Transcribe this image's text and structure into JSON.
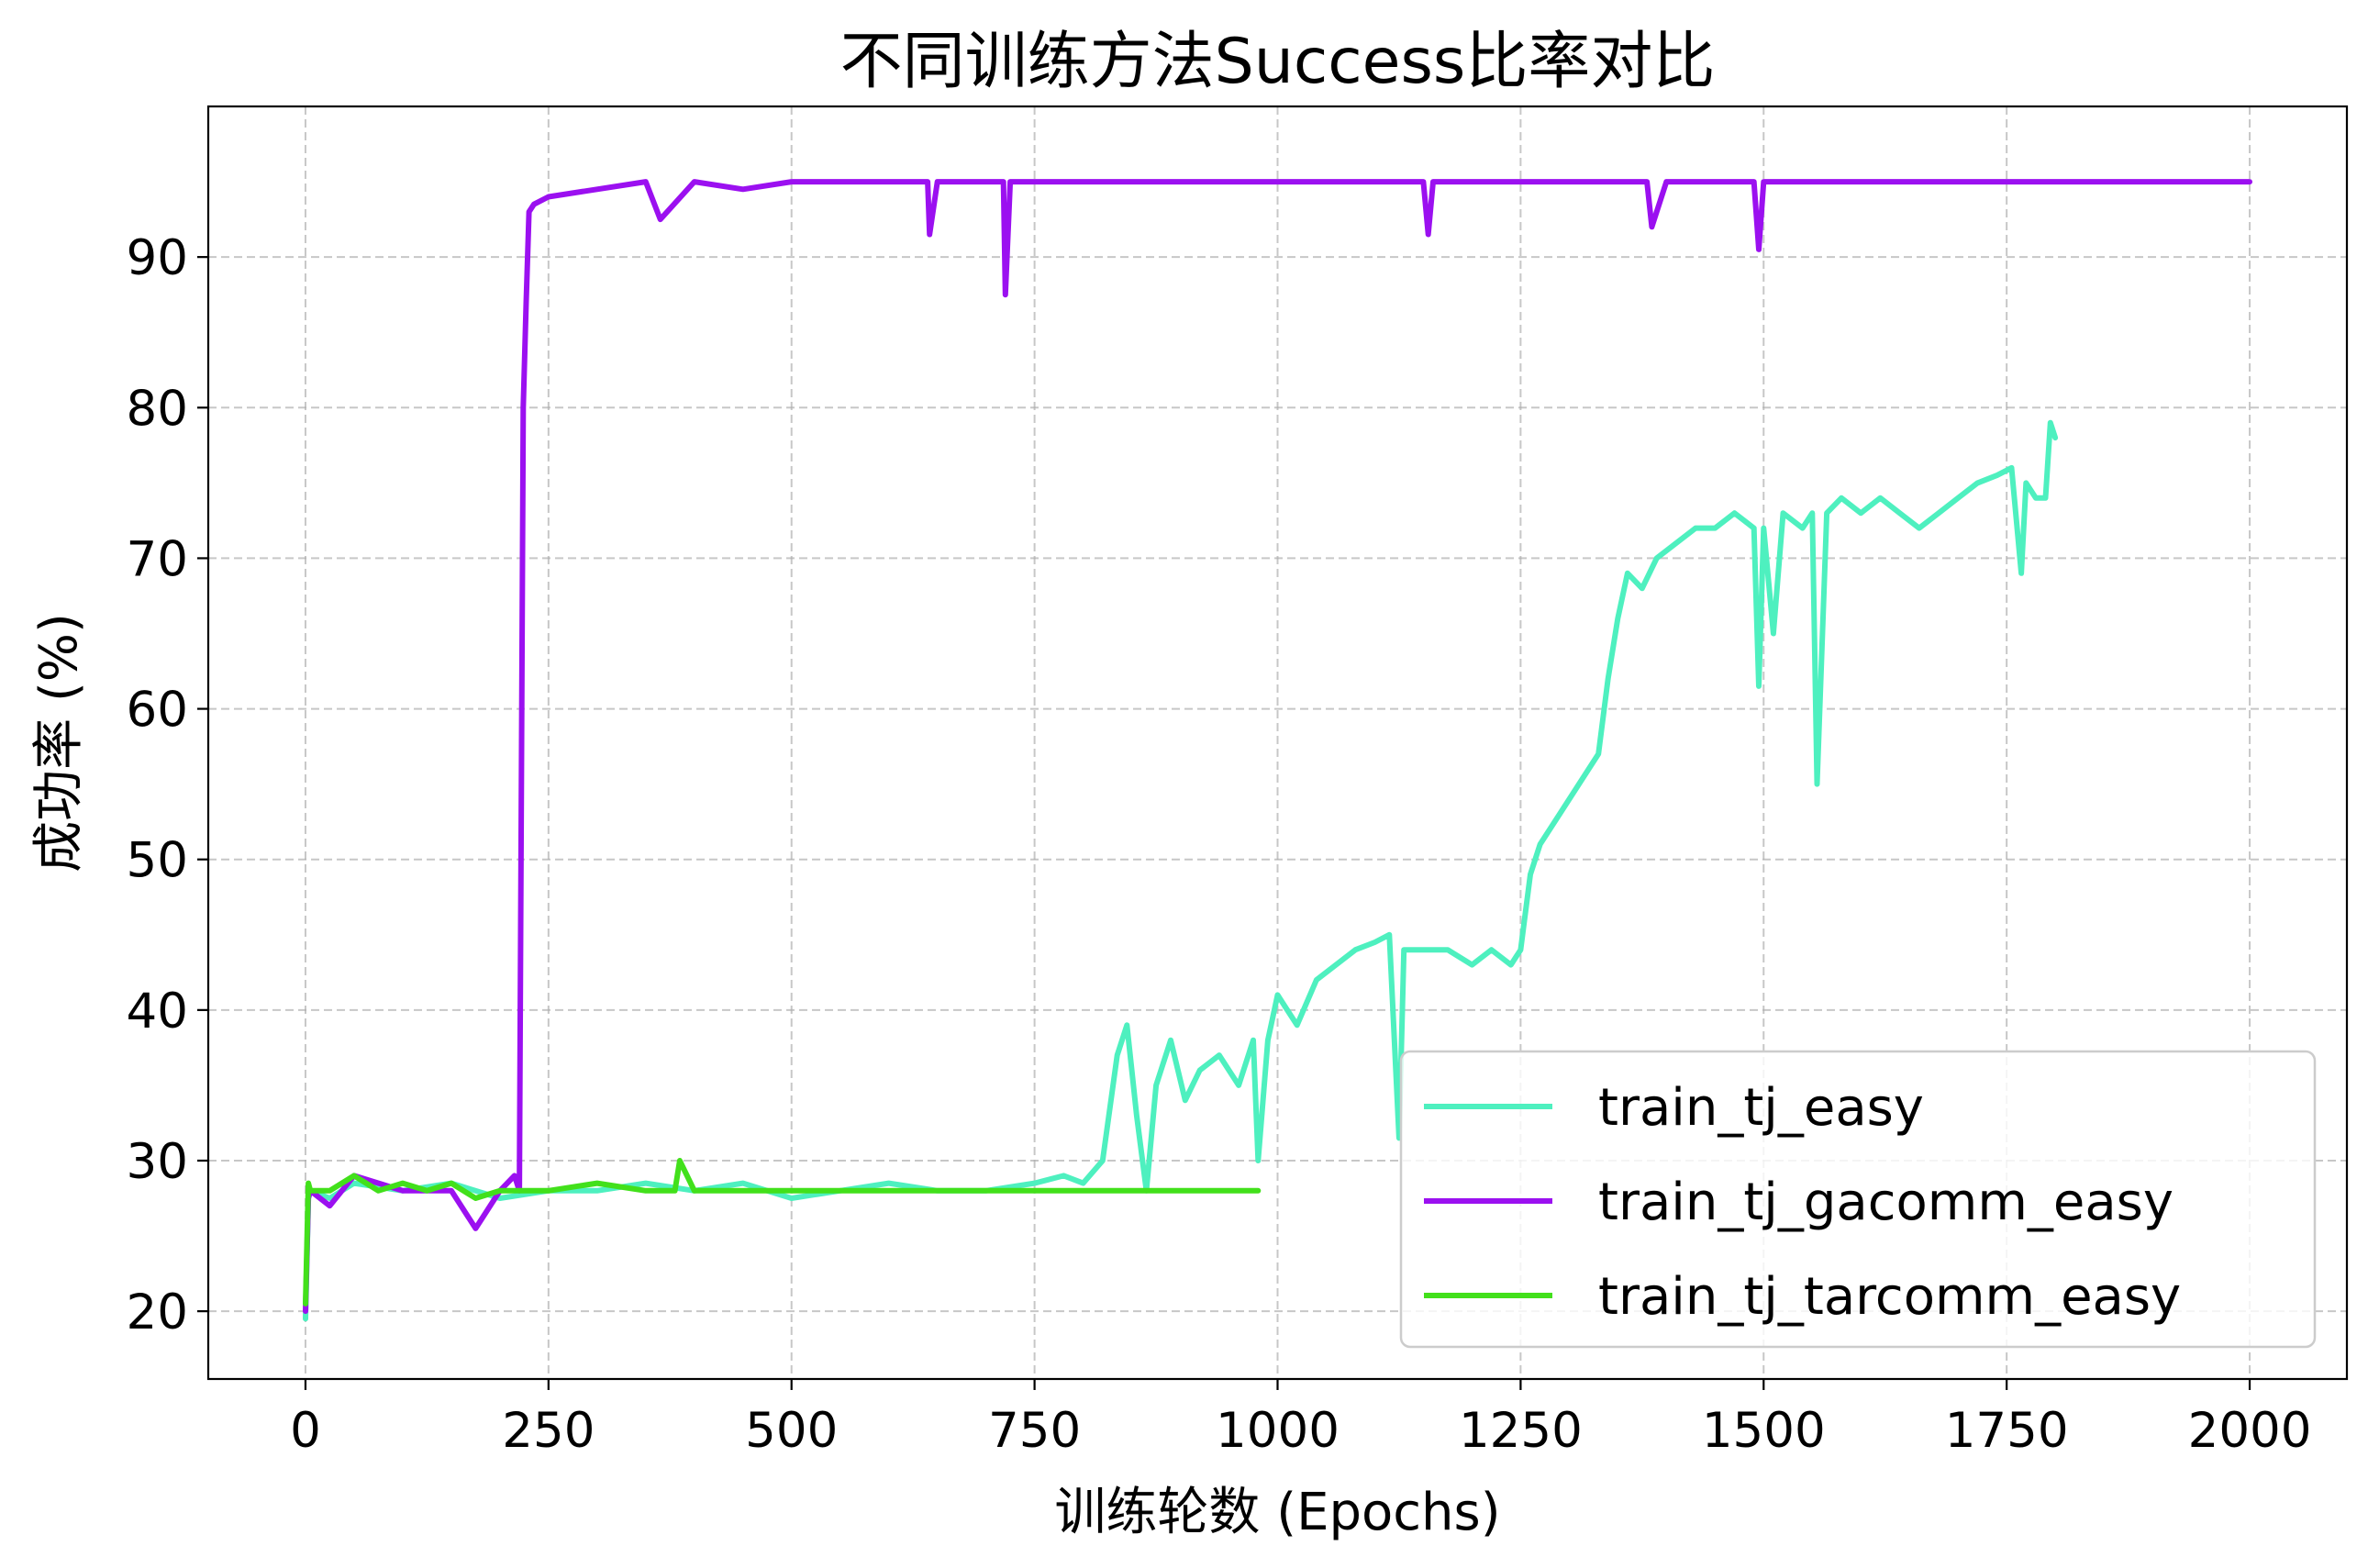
{
  "chart_data": {
    "type": "line",
    "title": "不同训练方法Success比率对比",
    "xlabel": "训练轮数 (Epochs)",
    "ylabel": "成功率 (%)",
    "xlim": [
      -100,
      2100
    ],
    "ylim": [
      15.5,
      100
    ],
    "x_ticks": [
      0,
      250,
      500,
      750,
      1000,
      1250,
      1500,
      1750,
      2000
    ],
    "x_tick_labels": [
      "0",
      "250",
      "500",
      "750",
      "1000",
      "1250",
      "1500",
      "1750",
      "2000"
    ],
    "y_ticks": [
      20,
      30,
      40,
      50,
      60,
      70,
      80,
      90
    ],
    "y_tick_labels": [
      "20",
      "30",
      "40",
      "50",
      "60",
      "70",
      "80",
      "90"
    ],
    "grid": true,
    "legend_position": "lower-right",
    "series": [
      {
        "name": "train_tj_easy",
        "color": "#4ef0bf",
        "x": [
          0,
          3,
          5,
          25,
          50,
          100,
          150,
          200,
          250,
          300,
          350,
          400,
          450,
          500,
          550,
          600,
          650,
          700,
          750,
          780,
          800,
          820,
          835,
          845,
          855,
          865,
          875,
          890,
          905,
          920,
          940,
          960,
          975,
          980,
          990,
          1000,
          1010,
          1020,
          1040,
          1060,
          1080,
          1100,
          1115,
          1125,
          1130,
          1150,
          1175,
          1200,
          1220,
          1240,
          1250,
          1260,
          1270,
          1290,
          1310,
          1330,
          1340,
          1350,
          1360,
          1375,
          1390,
          1410,
          1430,
          1450,
          1470,
          1490,
          1495,
          1500,
          1510,
          1520,
          1540,
          1550,
          1555,
          1565,
          1580,
          1600,
          1620,
          1640,
          1660,
          1680,
          1700,
          1720,
          1740,
          1755,
          1765,
          1770,
          1780,
          1790,
          1795,
          1800
        ],
        "y": [
          19.5,
          27.5,
          28,
          27.5,
          28.5,
          28,
          28.5,
          27.5,
          28,
          28,
          28.5,
          28,
          28.5,
          27.5,
          28,
          28.5,
          28,
          28,
          28.5,
          29,
          28.5,
          30,
          37,
          39,
          33,
          28,
          35,
          38,
          34,
          36,
          37,
          35,
          38,
          30,
          38,
          41,
          40,
          39,
          42,
          43,
          44,
          44.5,
          45,
          31.5,
          44,
          44,
          44,
          43,
          44,
          43,
          44,
          49,
          51,
          53,
          55,
          57,
          62,
          66,
          69,
          68,
          70,
          71,
          72,
          72,
          73,
          72,
          61.5,
          72,
          65,
          73,
          72,
          73,
          55,
          73,
          74,
          73,
          74,
          73,
          72,
          73,
          74,
          75,
          75.5,
          76,
          69,
          75,
          74,
          74,
          79,
          78
        ]
      },
      {
        "name": "train_tj_gacomm_easy",
        "color": "#9b10f0",
        "x": [
          0,
          3,
          5,
          25,
          50,
          100,
          150,
          175,
          200,
          215,
          220,
          224,
          227,
          230,
          235,
          250,
          300,
          350,
          365,
          400,
          450,
          500,
          550,
          600,
          640,
          642,
          650,
          700,
          718,
          720,
          725,
          750,
          800,
          850,
          900,
          950,
          1000,
          1050,
          1100,
          1150,
          1155,
          1160,
          1200,
          1250,
          1300,
          1350,
          1380,
          1385,
          1400,
          1450,
          1490,
          1495,
          1500,
          1550,
          1600,
          1650,
          1700,
          1750,
          1800,
          1850,
          1900,
          1950,
          2000
        ],
        "y": [
          20,
          27.5,
          28,
          27,
          29,
          28,
          28,
          25.5,
          28,
          29,
          28,
          80,
          87,
          93,
          93.5,
          94,
          94.5,
          95,
          92.5,
          95,
          94.5,
          95,
          95,
          95,
          95,
          91.5,
          95,
          95,
          95,
          87.5,
          95,
          95,
          95,
          95,
          95,
          95,
          95,
          95,
          95,
          95,
          91.5,
          95,
          95,
          95,
          95,
          95,
          95,
          92,
          95,
          95,
          95,
          90.5,
          95,
          95,
          95,
          95,
          95,
          95,
          95,
          95,
          95,
          95,
          95
        ]
      },
      {
        "name": "train_tj_tarcomm_easy",
        "color": "#42e01b",
        "x": [
          0,
          3,
          5,
          25,
          50,
          75,
          100,
          125,
          150,
          175,
          200,
          250,
          300,
          350,
          380,
          385,
          400,
          450,
          500,
          550,
          600,
          650,
          700,
          750,
          800,
          850,
          900,
          950,
          980
        ],
        "y": [
          20.5,
          28.5,
          28,
          28,
          29,
          28,
          28.5,
          28,
          28.5,
          27.5,
          28,
          28,
          28.5,
          28,
          28,
          30,
          28,
          28,
          28,
          28,
          28,
          28,
          28,
          28,
          28,
          28,
          28,
          28,
          28
        ]
      }
    ]
  }
}
